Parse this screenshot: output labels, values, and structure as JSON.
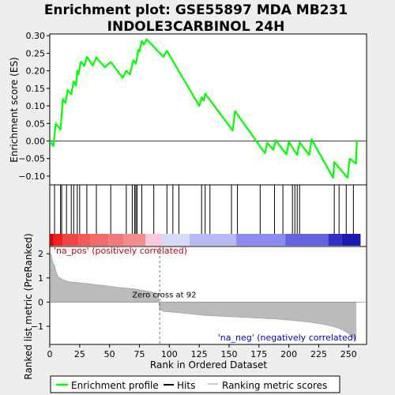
{
  "chart_data": {
    "type": "line",
    "title": "Enrichment plot: GSE55897 MDA MB231\nINDOLE3CARBINOL 24H",
    "xlabel": "Rank in Ordered Dataset",
    "es_ylabel": "Enrichment score (ES)",
    "rank_ylabel": "Ranked list metric (PreRanked)",
    "xlim": [
      0,
      265
    ],
    "es_ylim": [
      -0.125,
      0.305
    ],
    "rank_ylim": [
      -1.75,
      2.3
    ],
    "x_ticks": [
      0,
      25,
      50,
      75,
      100,
      125,
      150,
      175,
      200,
      225,
      250
    ],
    "es_ticks": [
      -0.1,
      -0.05,
      0.0,
      0.05,
      0.1,
      0.15,
      0.2,
      0.25,
      0.3
    ],
    "es_tick_labels": [
      "−0.10",
      "−0.05",
      "0.00",
      "0.05",
      "0.10",
      "0.15",
      "0.20",
      "0.25",
      "0.30"
    ],
    "rank_ticks": [
      -1,
      0,
      1,
      2
    ],
    "hits": [
      4,
      9,
      10,
      14,
      18,
      20,
      23,
      25,
      31,
      39,
      51,
      64,
      69,
      71,
      72,
      73,
      77,
      87,
      98,
      103,
      108,
      127,
      130,
      134,
      152,
      157,
      176,
      188,
      195,
      203,
      205,
      207,
      209,
      238,
      242,
      248,
      254
    ],
    "es_curve": [
      [
        0,
        0.0
      ],
      [
        3,
        -0.015
      ],
      [
        5,
        0.05
      ],
      [
        9,
        0.033
      ],
      [
        11,
        0.12
      ],
      [
        13,
        0.108
      ],
      [
        15,
        0.145
      ],
      [
        18,
        0.133
      ],
      [
        20,
        0.17
      ],
      [
        22,
        0.158
      ],
      [
        23,
        0.2
      ],
      [
        24,
        0.19
      ],
      [
        26,
        0.226
      ],
      [
        29,
        0.214
      ],
      [
        31,
        0.24
      ],
      [
        36,
        0.215
      ],
      [
        39,
        0.238
      ],
      [
        46,
        0.21
      ],
      [
        51,
        0.225
      ],
      [
        61,
        0.18
      ],
      [
        64,
        0.2
      ],
      [
        67,
        0.19
      ],
      [
        70,
        0.23
      ],
      [
        72,
        0.22
      ],
      [
        74,
        0.26
      ],
      [
        75,
        0.255
      ],
      [
        77,
        0.285
      ],
      [
        79,
        0.275
      ],
      [
        81,
        0.29
      ],
      [
        95,
        0.24
      ],
      [
        98,
        0.257
      ],
      [
        125,
        0.1
      ],
      [
        127,
        0.125
      ],
      [
        129,
        0.115
      ],
      [
        130,
        0.135
      ],
      [
        153,
        0.03
      ],
      [
        155,
        0.085
      ],
      [
        180,
        -0.035
      ],
      [
        182,
        -0.005
      ],
      [
        187,
        -0.025
      ],
      [
        189,
        0.002
      ],
      [
        198,
        -0.038
      ],
      [
        200,
        -0.003
      ],
      [
        207,
        -0.04
      ],
      [
        209,
        -0.004
      ],
      [
        217,
        -0.04
      ],
      [
        219,
        0.005
      ],
      [
        237,
        -0.105
      ],
      [
        238,
        -0.06
      ],
      [
        249,
        -0.105
      ],
      [
        251,
        -0.05
      ],
      [
        256,
        -0.065
      ],
      [
        257,
        0.002
      ]
    ],
    "rank_metric_profile": [
      [
        1,
        2.0
      ],
      [
        2,
        1.75
      ],
      [
        3,
        1.6
      ],
      [
        4,
        1.5
      ],
      [
        5,
        1.3
      ],
      [
        7,
        1.05
      ],
      [
        10,
        0.95
      ],
      [
        15,
        0.85
      ],
      [
        25,
        0.8
      ],
      [
        40,
        0.72
      ],
      [
        55,
        0.62
      ],
      [
        70,
        0.55
      ],
      [
        82,
        0.45
      ],
      [
        90,
        0.35
      ],
      [
        91,
        0.1
      ],
      [
        92,
        -0.3
      ],
      [
        95,
        -0.38
      ],
      [
        110,
        -0.45
      ],
      [
        130,
        -0.55
      ],
      [
        150,
        -0.6
      ],
      [
        170,
        -0.65
      ],
      [
        190,
        -0.7
      ],
      [
        205,
        -0.76
      ],
      [
        220,
        -0.85
      ],
      [
        232,
        -0.95
      ],
      [
        240,
        -1.05
      ],
      [
        245,
        -1.15
      ],
      [
        250,
        -1.3
      ],
      [
        253,
        -1.45
      ],
      [
        256,
        -1.6
      ]
    ],
    "zero_cross": 92,
    "pos_label": "'na_pos' (positively correlated)",
    "neg_label": "'na_neg' (negatively correlated)",
    "zero_cross_label": "Zero cross at 92",
    "legend": [
      "Enrichment profile",
      "Hits",
      "Ranking metric scores"
    ],
    "colors": {
      "es_line": "#00ff00",
      "hit": "#000000",
      "rank_fill": "#bbbbbb",
      "pos_text": "#cc0000",
      "neg_text": "#0000cc",
      "zero_line": "#666666",
      "panel_bg": "#ffffff"
    },
    "colorbar": [
      {
        "from": 0,
        "to": 3,
        "color": "#dd0000"
      },
      {
        "from": 3,
        "to": 11,
        "color": "#ee2222"
      },
      {
        "from": 11,
        "to": 24,
        "color": "#f24444"
      },
      {
        "from": 24,
        "to": 34,
        "color": "#f55a5a"
      },
      {
        "from": 34,
        "to": 49,
        "color": "#f56a6a"
      },
      {
        "from": 49,
        "to": 62,
        "color": "#f47878"
      },
      {
        "from": 62,
        "to": 80,
        "color": "#f58c8c"
      },
      {
        "from": 80,
        "to": 94,
        "color": "#f8c8dd"
      },
      {
        "from": 94,
        "to": 117,
        "color": "#d8d8f8"
      },
      {
        "from": 117,
        "to": 156,
        "color": "#b8b8f4"
      },
      {
        "from": 156,
        "to": 197,
        "color": "#8c8cf0"
      },
      {
        "from": 197,
        "to": 233,
        "color": "#6464e0"
      },
      {
        "from": 233,
        "to": 244,
        "color": "#3030c8"
      },
      {
        "from": 244,
        "to": 260,
        "color": "#1a1ab0"
      }
    ]
  }
}
